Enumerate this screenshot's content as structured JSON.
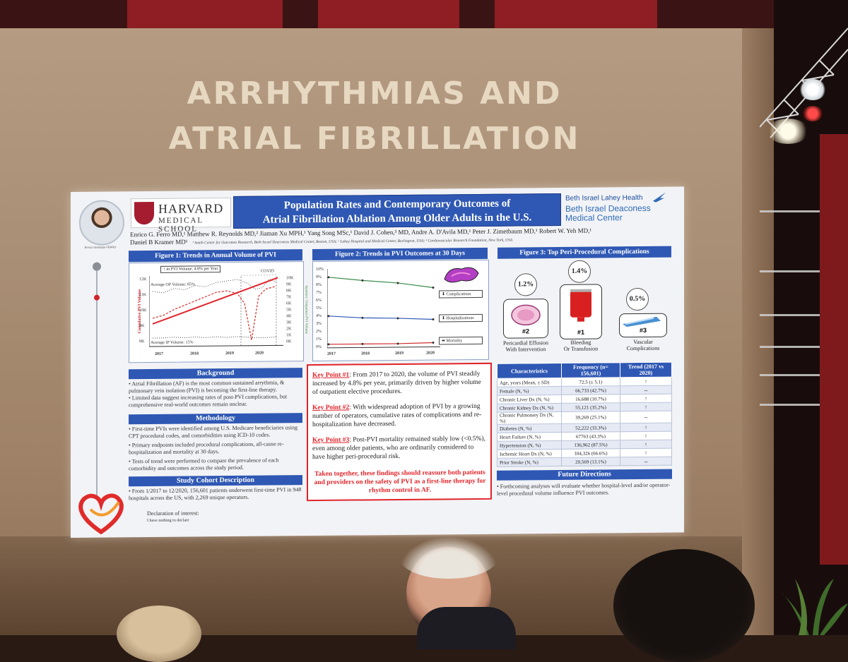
{
  "banner": {
    "line1": "ARRHYTHMIAS AND",
    "line2": "ATRIAL FIBRILLATION"
  },
  "poster": {
    "harvard": {
      "word1": "HARVARD",
      "word2": "MEDICAL SCHOOL"
    },
    "title": {
      "line1": "Population Rates and Contemporary Outcomes of",
      "line2": "Atrial Fibrillation Ablation Among Older Adults in the U.S."
    },
    "photo_caption": "Enrico Giuseppe FERRO",
    "institution": {
      "line1": "Beth Israel Lahey Health",
      "line2": "Beth Israel Deaconess",
      "line3": "Medical Center"
    },
    "authors": "Enrico G. Ferro MD,¹ Matthew R. Reynolds MD,² Jiaman Xu MPH,¹ Yang Song MSc,¹ David J. Cohen,³ MD, Andre A. D'Avila MD,¹ Peter J. Zimetbaum MD,¹ Robert W. Yeh MD,¹",
    "authors2": "Daniel B Kramer MD¹",
    "affiliations": "¹ Smith Center for Outcomes Research, Beth Israel Deaconess Medical Center, Boston, USA; ² Lahey Hospital and Medical Center, Burlington, USA; ³ Cardiovascular Research Foundation, New York, USA",
    "fig1": {
      "title": "Figure 1: Trends in Annual Volume of PVI",
      "increase_box": "↑ in PVI Volume: 4.8% per Year",
      "covid": "COVID",
      "op_label": "Average OP Volume: 85%",
      "ip_label": "Average IP Volume: 15%",
      "left_axis_title": "Cumulative PVI Volume",
      "right_axis_title": "Inpatient / Outpatient PVI Volume",
      "left_ticks": [
        "12K",
        "11K",
        "10K",
        "9K",
        "8K"
      ],
      "right_ticks": [
        "10K",
        "9K",
        "8K",
        "7K",
        "6K",
        "5K",
        "4K",
        "3K",
        "2K",
        "1K",
        "0K"
      ],
      "years": [
        "2017",
        "2018",
        "2019",
        "2020"
      ]
    },
    "fig2": {
      "title": "Figure 2: Trends in PVI Outcomes at 30 Days",
      "ticks": [
        "10%",
        "9%",
        "8%",
        "7%",
        "6%",
        "5%",
        "4%",
        "3%",
        "2%",
        "1%",
        "0%"
      ],
      "years": [
        "2017",
        "2018",
        "2019",
        "2020"
      ],
      "legend": [
        "Complications",
        "Hospitalizations",
        "Mortality"
      ]
    },
    "fig3": {
      "title": "Figure 3: Top Peri-Procedural Complications",
      "items": [
        {
          "rank": "#2",
          "pct": "1.2%",
          "label1": "Pericardial Effusion",
          "label2": "With Intervention"
        },
        {
          "rank": "#1",
          "pct": "1.4%",
          "label1": "Bleeding",
          "label2": "Or Transfusion"
        },
        {
          "rank": "#3",
          "pct": "0.5%",
          "label1": "Vascular",
          "label2": "Complications"
        }
      ]
    },
    "background": {
      "title": "Background",
      "p1": "• Atrial Fibrillation (AF) is the most common sustained arrythmia, & pulmonary vein isolation (PVI) is becoming the first-line therapy.",
      "p2": "• Limited data suggest increasing rates of post-PVI complications, but comprehensive real-world outcomes remain unclear."
    },
    "methodology": {
      "title": "Methodology",
      "p1": "• First-time PVIs were identified among U.S. Medicare beneficiaries using CPT procedural codes, and comorbidities using ICD-10 codes.",
      "p2": "• Primary endpoints included procedural complications, all-cause re-hospitalization and mortality at 30 days.",
      "p3": "• Tests of trend were performed to compare the prevalence of each comorbidity and outcomes across the study period."
    },
    "cohort": {
      "title": "Study Cohort Description",
      "p1": "• From 1/2017 to 12/2020, 156,601 patients underwent first-time PVI in 948 hospitals across the US, with 2,269 unique operators."
    },
    "declaration": {
      "title": "Declaration of interest:",
      "text": "I have nothing to declare"
    },
    "keypoints": {
      "k1_label": "Key Point #1",
      "k1_text": ": From 2017 to 2020, the volume of PVI steadily increased by 4.8% per year, primarily driven by higher volume of outpatient elective procedures.",
      "k2_label": "Key Point #2",
      "k2_text": ": With widespread adoption of PVI by a growing number of operators, cumulative rates of complications and re-hospitalization have decreased.",
      "k3_label": "Key Point #3",
      "k3_text": ": Post-PVI mortality remained stably low (<0.5%), even among older patients, who are ordinarily considered to have higher peri-procedural risk.",
      "closing": "Taken together, these findings should reassure both patients and providers on the safety of PVI as a first-line therapy for rhythm control in AF."
    },
    "table": {
      "headers": [
        "Characteristics",
        "Frequency (n= 156,601)",
        "Trend (2017 vs 2020)"
      ],
      "rows": [
        [
          "Age, years (Mean, ± SD)",
          "72.5 (± 5.1)",
          "↑"
        ],
        [
          "Female (N, %)",
          "66,733 (42.7%)",
          "↔"
        ],
        [
          "Chronic Liver Dx (N, %)",
          "16,688 (10.7%)",
          "↑"
        ],
        [
          "Chronic Kidney Dx (N, %)",
          "55,121 (35.2%)",
          "↑"
        ],
        [
          "Chronic Pulmonary Dx (N, %)",
          "39,269 (25.1%)",
          "↔"
        ],
        [
          "Diabetes (N, %)",
          "52,222 (33.3%)",
          "↑"
        ],
        [
          "Heart Failure (N, %)",
          "67763 (43.3%)",
          "↑"
        ],
        [
          "Hypertension (N, %)",
          "136,962 (87.5%)",
          "↑"
        ],
        [
          "Ischemic Heart Dx (N, %)",
          "104,326 (66.6%)",
          "↑"
        ],
        [
          "Prior Stroke (N, %)",
          "20,569 (13.1%)",
          "↔"
        ]
      ]
    },
    "future": {
      "title": "Future Directions",
      "p1": "• Forthcoming analyses will evaluate whether hospital-level and/or operator-level procedural volume influence PVI outcomes."
    }
  },
  "colors": {
    "poster_blue": "#2f58b4",
    "accent_red": "#e0242a",
    "banner_text": "#e7d8c2"
  }
}
